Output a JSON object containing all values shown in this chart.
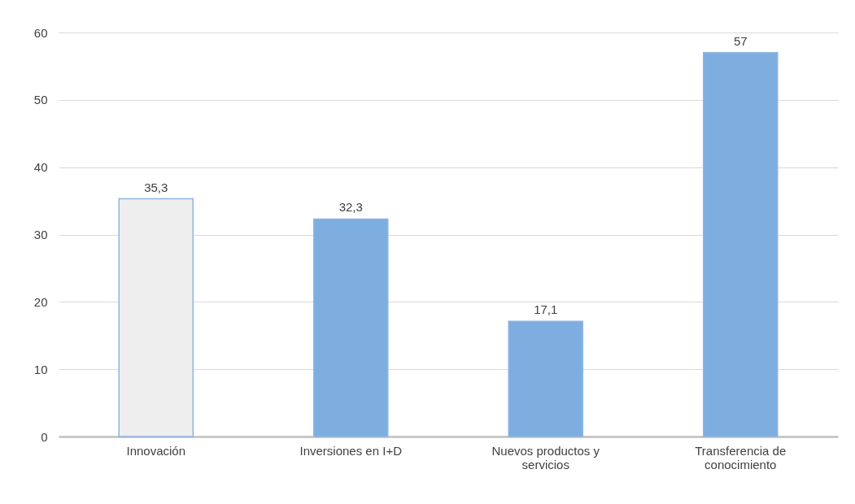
{
  "chart_data": {
    "type": "bar",
    "categories": [
      "Innovación",
      "Inversiones en I+D",
      "Nuevos productos y servicios",
      "Transferencia de conocimiento"
    ],
    "values": [
      35.3,
      32.3,
      17.1,
      57
    ],
    "colors": [
      "#eeeeee",
      "#7eaee0",
      "#7eaee0",
      "#7eaee0"
    ],
    "value_labels": [
      "35,3",
      "32,3",
      "17,1",
      "57"
    ],
    "ylim": [
      0,
      60
    ],
    "yticks": [
      0,
      10,
      20,
      30,
      40,
      50,
      60
    ],
    "grid": "y"
  }
}
